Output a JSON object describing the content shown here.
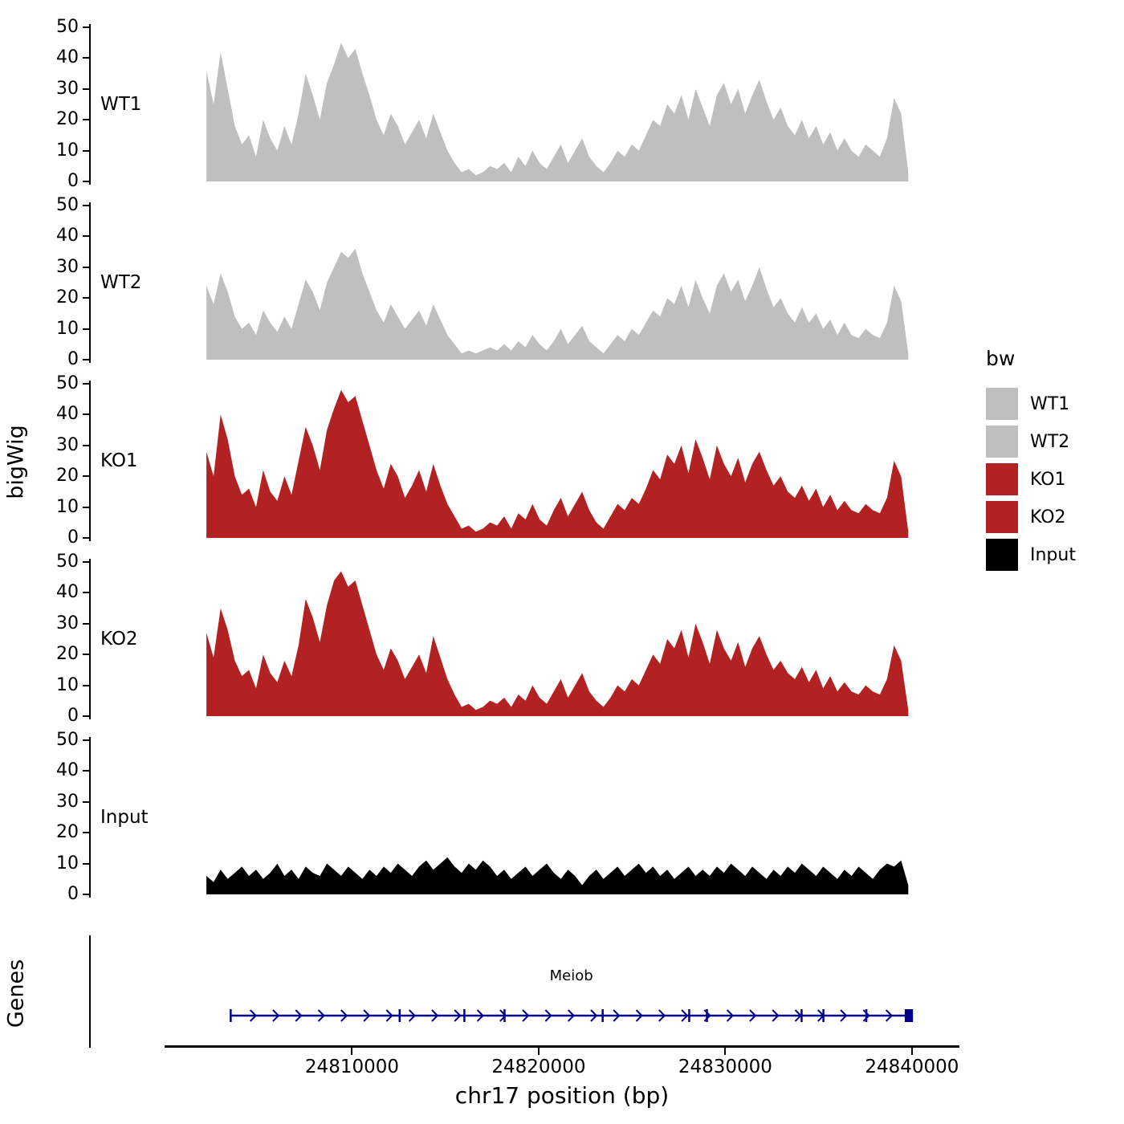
{
  "labels": {
    "y_title": "bigWig",
    "genes_title": "Genes",
    "x_title": "chr17 position (bp)"
  },
  "legend": {
    "title": "bw",
    "items": [
      {
        "label": "WT1",
        "color": "#bfbfbf"
      },
      {
        "label": "WT2",
        "color": "#bfbfbf"
      },
      {
        "label": "KO1",
        "color": "#b22222"
      },
      {
        "label": "KO2",
        "color": "#b22222"
      },
      {
        "label": "Input",
        "color": "#000000"
      }
    ]
  },
  "chart_data": {
    "type": "area",
    "title": "",
    "xlabel": "chr17 position (bp)",
    "ylabel": "bigWig",
    "xlim": [
      24796000,
      24842800
    ],
    "x_start": 24802200,
    "x_end": 24839800,
    "ylim": [
      0,
      50
    ],
    "yticks": [
      0,
      10,
      20,
      30,
      40,
      50
    ],
    "xticks": [
      24810000,
      24820000,
      24830000,
      24840000
    ],
    "xtick_labels": [
      "24810000",
      "24820000",
      "24830000",
      "24840000"
    ],
    "tracks": [
      {
        "name": "WT1",
        "color": "#bfbfbf",
        "values": [
          36,
          25,
          42,
          30,
          18,
          12,
          15,
          8,
          20,
          14,
          10,
          18,
          12,
          22,
          35,
          28,
          20,
          32,
          38,
          45,
          40,
          43,
          35,
          28,
          20,
          15,
          22,
          18,
          12,
          16,
          20,
          14,
          22,
          16,
          10,
          6,
          3,
          4,
          2,
          3,
          5,
          4,
          6,
          3,
          8,
          5,
          10,
          6,
          4,
          8,
          12,
          6,
          10,
          14,
          8,
          5,
          3,
          6,
          10,
          8,
          12,
          10,
          15,
          20,
          18,
          25,
          22,
          28,
          20,
          30,
          24,
          18,
          28,
          32,
          25,
          30,
          22,
          28,
          33,
          26,
          20,
          24,
          18,
          15,
          20,
          14,
          18,
          12,
          16,
          10,
          14,
          10,
          8,
          12,
          10,
          8,
          14,
          27,
          22,
          3
        ]
      },
      {
        "name": "WT2",
        "color": "#bfbfbf",
        "values": [
          24,
          18,
          28,
          22,
          14,
          10,
          12,
          8,
          16,
          12,
          9,
          14,
          10,
          18,
          26,
          22,
          16,
          25,
          30,
          35,
          33,
          36,
          28,
          22,
          16,
          12,
          18,
          14,
          10,
          13,
          16,
          11,
          18,
          13,
          8,
          5,
          2,
          3,
          2,
          3,
          4,
          3,
          5,
          3,
          6,
          4,
          8,
          5,
          3,
          6,
          10,
          5,
          8,
          11,
          6,
          4,
          2,
          5,
          8,
          6,
          10,
          8,
          12,
          16,
          14,
          20,
          18,
          24,
          17,
          26,
          20,
          15,
          24,
          28,
          22,
          26,
          19,
          24,
          30,
          23,
          17,
          20,
          15,
          12,
          17,
          12,
          15,
          10,
          13,
          8,
          12,
          8,
          7,
          10,
          8,
          7,
          12,
          24,
          19,
          2
        ]
      },
      {
        "name": "KO1",
        "color": "#b22222",
        "values": [
          28,
          20,
          40,
          32,
          20,
          14,
          16,
          10,
          22,
          15,
          12,
          20,
          14,
          25,
          36,
          30,
          22,
          35,
          42,
          48,
          44,
          46,
          38,
          30,
          22,
          16,
          24,
          20,
          13,
          17,
          22,
          15,
          24,
          17,
          11,
          7,
          3,
          4,
          2,
          3,
          5,
          4,
          7,
          3,
          8,
          6,
          11,
          6,
          4,
          9,
          13,
          7,
          11,
          15,
          9,
          5,
          3,
          7,
          11,
          9,
          13,
          11,
          16,
          22,
          19,
          27,
          24,
          30,
          21,
          32,
          26,
          19,
          30,
          24,
          20,
          26,
          18,
          24,
          28,
          22,
          17,
          20,
          15,
          13,
          17,
          12,
          16,
          10,
          14,
          9,
          12,
          9,
          8,
          11,
          9,
          8,
          13,
          25,
          20,
          2
        ]
      },
      {
        "name": "KO2",
        "color": "#b22222",
        "values": [
          27,
          19,
          35,
          28,
          18,
          13,
          15,
          9,
          20,
          14,
          11,
          18,
          13,
          23,
          38,
          32,
          24,
          36,
          44,
          47,
          42,
          44,
          36,
          28,
          20,
          15,
          22,
          18,
          12,
          16,
          20,
          14,
          26,
          19,
          12,
          7,
          3,
          4,
          2,
          3,
          5,
          4,
          6,
          3,
          7,
          5,
          10,
          6,
          4,
          8,
          12,
          6,
          10,
          14,
          8,
          5,
          3,
          6,
          10,
          8,
          12,
          10,
          15,
          20,
          17,
          25,
          22,
          28,
          19,
          30,
          24,
          17,
          28,
          22,
          18,
          24,
          16,
          22,
          26,
          20,
          15,
          18,
          14,
          12,
          16,
          11,
          15,
          9,
          13,
          8,
          11,
          8,
          7,
          10,
          8,
          7,
          12,
          23,
          18,
          2
        ]
      },
      {
        "name": "Input",
        "color": "#000000",
        "values": [
          6,
          4,
          8,
          5,
          7,
          9,
          6,
          8,
          5,
          7,
          10,
          6,
          8,
          5,
          9,
          7,
          6,
          10,
          8,
          6,
          9,
          7,
          5,
          8,
          6,
          9,
          7,
          10,
          8,
          6,
          9,
          11,
          8,
          10,
          12,
          9,
          7,
          10,
          8,
          11,
          9,
          6,
          8,
          5,
          7,
          9,
          6,
          8,
          10,
          7,
          5,
          8,
          6,
          3,
          6,
          8,
          5,
          7,
          9,
          6,
          8,
          10,
          7,
          9,
          6,
          8,
          5,
          7,
          9,
          6,
          8,
          6,
          9,
          7,
          10,
          8,
          6,
          9,
          7,
          5,
          8,
          6,
          9,
          7,
          10,
          8,
          6,
          9,
          7,
          5,
          8,
          6,
          9,
          7,
          5,
          8,
          10,
          9,
          11,
          3
        ]
      }
    ],
    "gene": {
      "name": "Meiob",
      "color": "#00008b",
      "start": 24803500,
      "end": 24840000,
      "strand": "+",
      "exon_fractions": [
        0.0,
        0.248,
        0.343,
        0.402,
        0.546,
        0.673,
        0.699,
        0.838,
        0.87,
        0.933,
        1.0
      ]
    }
  }
}
